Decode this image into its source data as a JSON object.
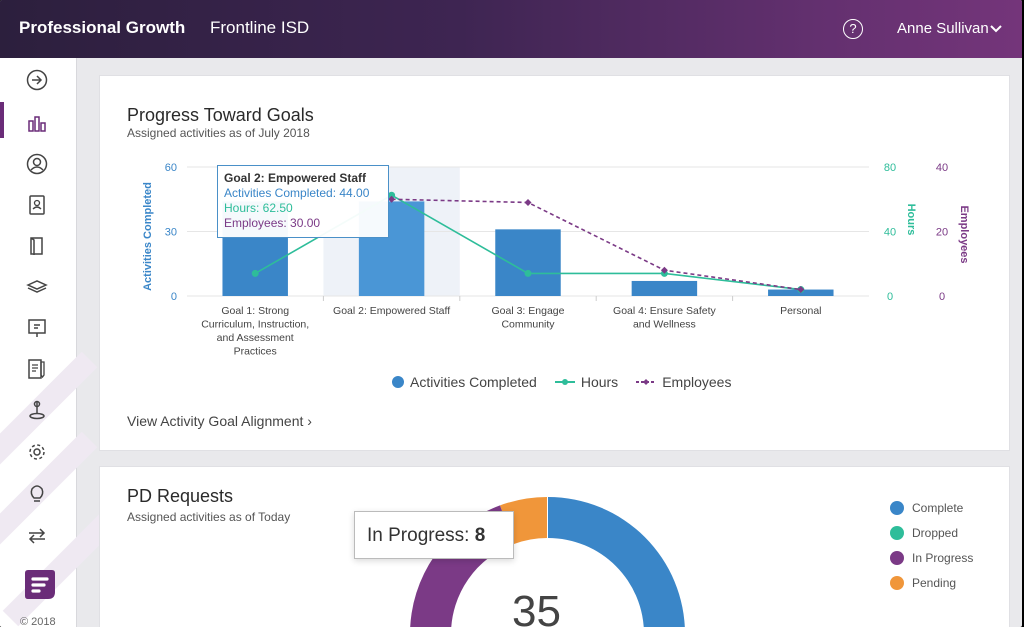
{
  "header": {
    "brand": "Professional Growth",
    "district": "Frontline ISD",
    "help_glyph": "?",
    "user_name": "Anne Sullivan",
    "user_chevron": "⌄"
  },
  "sidebar": {
    "items": [
      {
        "name": "arrow-right-circle-icon"
      },
      {
        "name": "bar-chart-icon"
      },
      {
        "name": "user-circle-icon"
      },
      {
        "name": "profile-card-icon"
      },
      {
        "name": "book-icon"
      },
      {
        "name": "layers-icon"
      },
      {
        "name": "presentation-icon"
      },
      {
        "name": "document-edit-icon"
      },
      {
        "name": "map-pin-icon"
      },
      {
        "name": "gear-icon"
      },
      {
        "name": "lightbulb-icon"
      },
      {
        "name": "transfer-arrows-icon"
      }
    ],
    "copyright": "© 2018"
  },
  "goals_card": {
    "title": "Progress Toward Goals",
    "subtitle": "Assigned activities as of July 2018",
    "link": "View Activity Goal Alignment ›",
    "tooltip": {
      "title": "Goal 2: Empowered Staff",
      "activities": "Activities Completed: 44.00",
      "hours": "Hours: 62.50",
      "employees": "Employees: 30.00"
    },
    "legend": [
      {
        "label": "Activities Completed",
        "color": "#3a86c8"
      },
      {
        "label": "Hours",
        "color": "#2ebd9a"
      },
      {
        "label": "Employees",
        "color": "#7b3a86"
      }
    ]
  },
  "chart_data": {
    "type": "bar",
    "categories": [
      [
        "Goal 1: Strong",
        "Curriculum, Instruction,",
        "and Assessment",
        "Practices"
      ],
      [
        "Goal 2: Empowered Staff"
      ],
      [
        "Goal 3: Engage",
        "Community"
      ],
      [
        "Goal 4: Ensure Safety",
        "and Wellness"
      ],
      [
        "Personal"
      ]
    ],
    "highlighted_index": 1,
    "series": [
      {
        "name": "Activities Completed",
        "kind": "bar",
        "axis": "left",
        "color": "#3a86c8",
        "values": [
          44,
          44,
          31,
          7,
          3
        ]
      },
      {
        "name": "Hours",
        "kind": "line",
        "axis": "right1",
        "color": "#2ebd9a",
        "values": [
          14,
          62.5,
          14,
          14,
          4
        ]
      },
      {
        "name": "Employees",
        "kind": "line-dashed",
        "axis": "right2",
        "color": "#7b3a86",
        "values": [
          null,
          30,
          29,
          8,
          2
        ]
      }
    ],
    "axes": {
      "left": {
        "label": "Activities Completed",
        "ticks": [
          0,
          30,
          60
        ],
        "max": 60,
        "color": "#3a86c8"
      },
      "right1": {
        "label": "Hours",
        "ticks": [
          0,
          40,
          80
        ],
        "max": 80,
        "color": "#2ebd9a"
      },
      "right2": {
        "label": "Employees",
        "ticks": [
          0,
          20,
          40
        ],
        "max": 40,
        "color": "#7b3a86"
      }
    },
    "grid": true,
    "legend_position": "bottom"
  },
  "pd_card": {
    "title": "PD Requests",
    "subtitle": "Assigned activities as of Today",
    "tooltip_label": "In Progress:",
    "tooltip_value": "8",
    "center_value": "35",
    "legend": [
      {
        "label": "Complete",
        "color": "#3a86c8"
      },
      {
        "label": "Dropped",
        "color": "#2ebd9a"
      },
      {
        "label": "In Progress",
        "color": "#7b3a86"
      },
      {
        "label": "Pending",
        "color": "#f0963a"
      }
    ]
  }
}
